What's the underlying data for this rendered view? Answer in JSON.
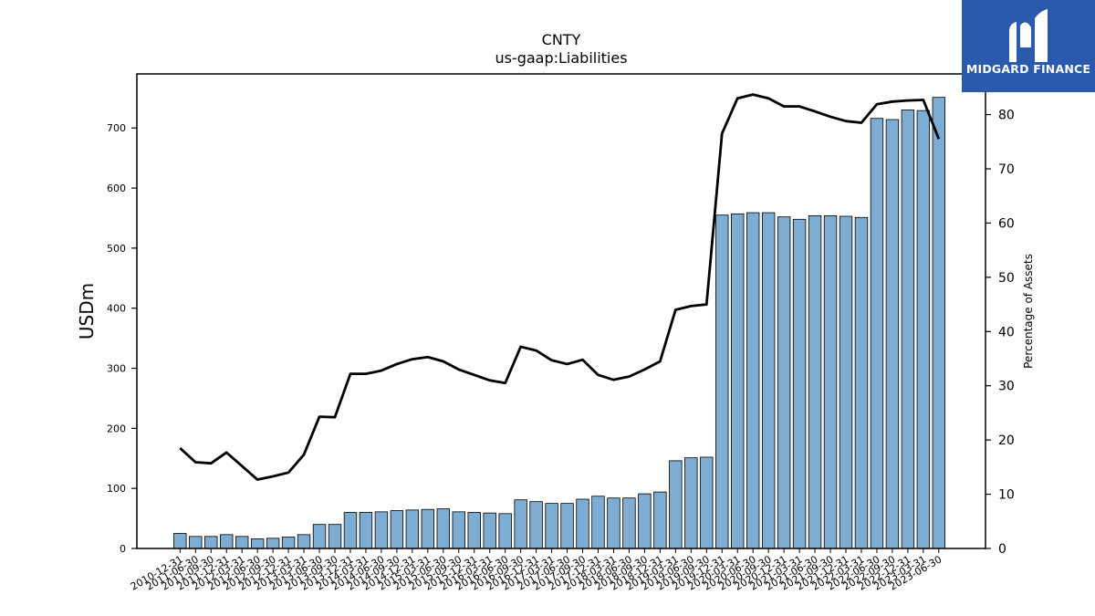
{
  "brand": {
    "name": "MIDGARD FINANCE",
    "color": "#2b5aad"
  },
  "chart_data": {
    "type": "bar",
    "title": "CNTY",
    "subtitle": "us-gaap:Liabilities",
    "ylabel": "USDm",
    "y2label": "Percentage of Assets",
    "ylim": [
      0,
      790
    ],
    "y2lim": [
      0,
      87.5
    ],
    "yticks": [
      0,
      100,
      200,
      300,
      400,
      500,
      600,
      700
    ],
    "y2ticks": [
      0,
      10,
      20,
      30,
      40,
      50,
      60,
      70,
      80
    ],
    "bar_color": "#7eadd3",
    "line_color": "#000000",
    "categories": [
      "2010-12-31",
      "2011-06-30",
      "2011-09-30",
      "2011-12-31",
      "2012-03-31",
      "2012-06-30",
      "2012-09-30",
      "2012-12-31",
      "2013-03-31",
      "2013-06-30",
      "2013-09-30",
      "2013-12-31",
      "2014-03-31",
      "2014-06-30",
      "2014-09-30",
      "2014-12-31",
      "2015-03-31",
      "2015-06-30",
      "2015-09-30",
      "2015-12-31",
      "2016-03-31",
      "2016-06-30",
      "2016-09-30",
      "2016-12-31",
      "2017-03-31",
      "2017-06-30",
      "2017-09-30",
      "2017-12-31",
      "2018-03-31",
      "2018-06-30",
      "2018-09-30",
      "2018-12-31",
      "2019-03-31",
      "2019-06-30",
      "2019-09-30",
      "2019-12-31",
      "2020-03-31",
      "2020-06-30",
      "2020-09-30",
      "2020-12-31",
      "2021-03-31",
      "2021-06-30",
      "2021-09-30",
      "2021-12-31",
      "2022-03-31",
      "2022-06-30",
      "2022-09-30",
      "2022-12-31",
      "2023-03-31",
      "2023-06-30"
    ],
    "series": [
      {
        "name": "Liabilities",
        "kind": "bar",
        "axis": "left",
        "values": [
          25,
          20,
          20,
          23,
          20,
          16,
          17,
          19,
          23,
          40,
          40,
          60,
          60,
          61,
          63,
          64,
          65,
          66,
          61,
          60,
          59,
          58,
          81,
          78,
          75,
          75,
          82,
          87,
          84,
          84,
          91,
          94,
          146,
          151,
          152,
          555,
          557,
          559,
          559,
          552,
          548,
          554,
          554,
          553,
          551,
          716,
          714,
          730,
          729,
          751
        ]
      },
      {
        "name": "Percentage of Assets",
        "kind": "line",
        "axis": "right",
        "values": [
          18.5,
          15.9,
          15.7,
          17.7,
          15.2,
          12.7,
          13.3,
          14.0,
          17.3,
          24.3,
          24.2,
          32.2,
          32.2,
          32.8,
          34.0,
          34.9,
          35.3,
          34.5,
          33.0,
          32.0,
          31.0,
          30.5,
          37.2,
          36.5,
          34.7,
          34.0,
          34.8,
          32.0,
          31.1,
          31.7,
          33.0,
          34.5,
          44.0,
          44.7,
          45.0,
          76.5,
          83.0,
          83.7,
          83.0,
          81.5,
          81.5,
          80.6,
          79.6,
          78.8,
          78.5,
          81.9,
          82.4,
          82.6,
          82.7,
          75.5
        ]
      }
    ]
  }
}
